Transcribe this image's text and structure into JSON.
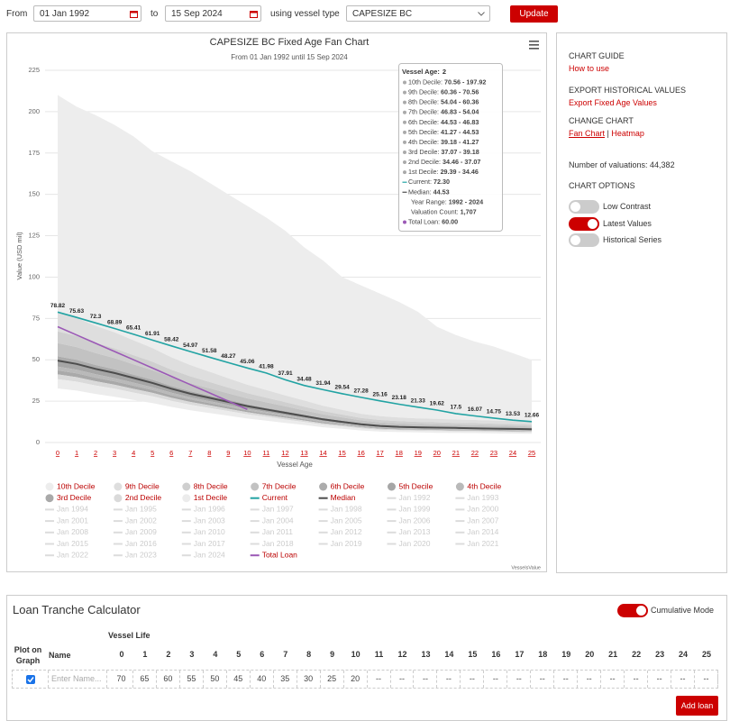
{
  "controls": {
    "from_label": "From",
    "from_date": "01 Jan 1992",
    "to_label": "to",
    "to_date": "15 Sep 2024",
    "vessel_label": "using vessel type",
    "vessel_type": "CAPESIZE BC",
    "update": "Update"
  },
  "chart_data": {
    "type": "fan",
    "title": "CAPESIZE BC Fixed Age Fan Chart",
    "subtitle": "From 01 Jan 1992 until 15 Sep 2024",
    "x_label": "Vessel Age",
    "y_label": "Value (USD mil)",
    "categories": [
      "0",
      "1",
      "2",
      "3",
      "4",
      "5",
      "6",
      "7",
      "8",
      "9",
      "10",
      "11",
      "12",
      "13",
      "14",
      "15",
      "16",
      "17",
      "18",
      "19",
      "20",
      "21",
      "22",
      "23",
      "24",
      "25"
    ],
    "ylim": [
      0,
      225
    ],
    "yticks": [
      0,
      25,
      50,
      75,
      100,
      125,
      150,
      175,
      200,
      225
    ],
    "grid": true,
    "series": [
      {
        "name": "10th Decile",
        "style": "band",
        "color": "#ededed",
        "values": [
          210,
          203,
          197.92,
          192,
          185,
          176,
          170,
          164,
          157,
          150,
          143,
          136,
          128,
          118,
          110,
          100,
          95,
          90,
          85,
          79,
          70,
          65,
          61,
          58,
          54,
          50
        ]
      },
      {
        "name": "9th Decile",
        "style": "band",
        "color": "#dedede",
        "values": [
          78.5,
          75.3,
          70.56,
          66.6,
          61.8,
          57.1,
          51.5,
          46.8,
          42.8,
          38.8,
          34.9,
          31.7,
          28.5,
          25.4,
          22.2,
          19.8,
          17.4,
          15.9,
          15.1,
          14.6,
          14.3,
          13.9,
          13.6,
          13.3,
          13.0,
          12.7
        ]
      },
      {
        "name": "8th Decile",
        "style": "band",
        "color": "#cfcfcf",
        "values": [
          67.1,
          64.4,
          60.36,
          56.9,
          52.8,
          48.8,
          44.0,
          40.0,
          36.6,
          33.2,
          29.8,
          27.1,
          24.4,
          21.7,
          19.0,
          16.9,
          14.9,
          13.6,
          12.9,
          12.5,
          12.2,
          11.9,
          11.7,
          11.4,
          11.1,
          10.8
        ]
      },
      {
        "name": "7th Decile",
        "style": "band",
        "color": "#c2c2c2",
        "values": [
          60.1,
          57.7,
          54.04,
          51.0,
          47.3,
          43.7,
          39.5,
          35.8,
          32.8,
          29.7,
          26.7,
          24.3,
          21.9,
          19.4,
          17.0,
          15.2,
          13.4,
          12.1,
          11.5,
          11.2,
          10.9,
          10.7,
          10.4,
          10.2,
          10.0,
          9.7
        ]
      },
      {
        "name": "6th Decile",
        "style": "band",
        "color": "#acacac",
        "values": [
          52.1,
          50.0,
          46.83,
          44.2,
          41.0,
          37.9,
          34.2,
          31.0,
          28.4,
          25.8,
          23.1,
          21.0,
          18.9,
          16.8,
          14.7,
          13.2,
          11.6,
          10.5,
          10.0,
          9.7,
          9.5,
          9.3,
          9.0,
          8.8,
          8.6,
          8.4
        ]
      },
      {
        "name": "5th Decile",
        "style": "band",
        "color": "#a6a6a6",
        "values": [
          49.5,
          47.5,
          44.53,
          42.0,
          39.0,
          36.0,
          32.5,
          29.5,
          27.0,
          24.5,
          22.0,
          20.0,
          18.0,
          16.0,
          14.0,
          12.5,
          11.0,
          10.0,
          9.5,
          9.2,
          9.0,
          8.8,
          8.6,
          8.4,
          8.2,
          8.0
        ]
      },
      {
        "name": "4th Decile",
        "style": "band",
        "color": "#b9b9b9",
        "values": [
          45.9,
          44.0,
          41.27,
          38.9,
          36.2,
          33.4,
          30.1,
          27.3,
          25.0,
          22.7,
          20.4,
          18.5,
          16.7,
          14.8,
          13.0,
          11.6,
          10.2,
          9.3,
          8.8,
          8.5,
          8.3,
          8.2,
          8.0,
          7.8,
          7.6,
          7.4
        ]
      },
      {
        "name": "3rd Decile",
        "style": "band",
        "color": "#a9a9a9",
        "values": [
          43.6,
          41.8,
          39.18,
          37.0,
          34.3,
          31.7,
          28.6,
          26.0,
          23.8,
          21.6,
          19.4,
          17.6,
          15.8,
          14.1,
          12.3,
          11.0,
          9.7,
          8.8,
          8.4,
          8.1,
          7.9,
          7.7,
          7.6,
          7.4,
          7.2,
          7.0
        ]
      },
      {
        "name": "2nd Decile",
        "style": "band",
        "color": "#dadada",
        "values": [
          41.2,
          39.5,
          37.07,
          34.9,
          32.4,
          30.0,
          27.0,
          24.5,
          22.5,
          20.4,
          18.3,
          16.6,
          15.0,
          13.3,
          11.6,
          10.4,
          9.2,
          8.3,
          7.9,
          7.7,
          7.5,
          7.3,
          7.2,
          7.0,
          6.8,
          6.7
        ]
      },
      {
        "name": "1st Decile",
        "style": "band",
        "color": "#ececec",
        "values": [
          38.3,
          36.8,
          34.46,
          32.5,
          30.2,
          27.9,
          25.2,
          22.8,
          20.9,
          19.0,
          17.0,
          15.5,
          13.9,
          12.4,
          10.8,
          9.7,
          8.5,
          7.7,
          7.4,
          7.1,
          7.0,
          6.8,
          6.7,
          6.5,
          6.3,
          6.2
        ],
        "low": [
          32.7,
          31.4,
          29.39,
          27.7,
          25.7,
          23.8,
          21.5,
          19.5,
          17.8,
          16.2,
          14.5,
          13.2,
          11.9,
          10.6,
          9.2,
          8.3,
          7.3,
          6.6,
          6.3,
          6.1,
          5.9,
          5.8,
          5.7,
          5.5,
          5.4,
          5.3
        ]
      },
      {
        "name": "Current",
        "style": "line",
        "color": "#22a3a3",
        "width": 1.6,
        "labels": true,
        "values": [
          78.82,
          75.63,
          72.3,
          68.89,
          65.41,
          61.91,
          58.42,
          54.97,
          51.58,
          48.27,
          45.06,
          41.98,
          37.91,
          34.48,
          31.94,
          29.54,
          27.28,
          25.16,
          23.18,
          21.33,
          19.62,
          17.5,
          16.07,
          14.75,
          13.53,
          12.66
        ]
      },
      {
        "name": "Median",
        "style": "line",
        "color": "#4d4d4d",
        "width": 2,
        "values": [
          49.5,
          47.5,
          44.53,
          42,
          39,
          36,
          32.5,
          29.5,
          27,
          24.5,
          22,
          20,
          18,
          16,
          14,
          12.5,
          11,
          10,
          9.5,
          9.2,
          9,
          8.8,
          8.6,
          8.4,
          8.2,
          8
        ]
      },
      {
        "name": "Total Loan",
        "style": "line",
        "color": "#9b59b6",
        "width": 1.6,
        "values": [
          70,
          65,
          60,
          55,
          50,
          45,
          40,
          35,
          30,
          25,
          20,
          null,
          null,
          null,
          null,
          null,
          null,
          null,
          null,
          null,
          null,
          null,
          null,
          null,
          null,
          null
        ]
      }
    ],
    "legend_inactive": [
      "Jan 1992",
      "Jan 1993",
      "Jan 1994",
      "Jan 1995",
      "Jan 1996",
      "Jan 1997",
      "Jan 1998",
      "Jan 1999",
      "Jan 2000",
      "Jan 2001",
      "Jan 2002",
      "Jan 2003",
      "Jan 2004",
      "Jan 2005",
      "Jan 2006",
      "Jan 2007",
      "Jan 2008",
      "Jan 2009",
      "Jan 2010",
      "Jan 2011",
      "Jan 2012",
      "Jan 2013",
      "Jan 2014",
      "Jan 2015",
      "Jan 2016",
      "Jan 2017",
      "Jan 2018",
      "Jan 2019",
      "Jan 2020",
      "Jan 2021",
      "Jan 2022",
      "Jan 2023",
      "Jan 2024"
    ],
    "tooltip": {
      "title": {
        "label": "Vessel Age:",
        "value": 2
      },
      "rows": [
        {
          "label": "10th Decile:",
          "value": "70.56 - 197.92"
        },
        {
          "label": "9th Decile:",
          "value": "60.36 - 70.56"
        },
        {
          "label": "8th Decile:",
          "value": "54.04 - 60.36"
        },
        {
          "label": "7th Decile:",
          "value": "46.83 - 54.04"
        },
        {
          "label": "6th Decile:",
          "value": "44.53 - 46.83"
        },
        {
          "label": "5th Decile:",
          "value": "41.27 - 44.53"
        },
        {
          "label": "4th Decile:",
          "value": "39.18 - 41.27"
        },
        {
          "label": "3rd Decile:",
          "value": "37.07 - 39.18"
        },
        {
          "label": "2nd Decile:",
          "value": "34.46 - 37.07"
        },
        {
          "label": "1st Decile:",
          "value": "29.39 - 34.46"
        },
        {
          "label": "Current:",
          "value": "72.30"
        },
        {
          "label": "Median:",
          "value": "44.53"
        },
        {
          "label": "Year Range:",
          "value": "1992 - 2024"
        },
        {
          "label": "Valuation Count:",
          "value": "1,707"
        },
        {
          "label": "Total Loan:",
          "value": "60.00"
        }
      ]
    },
    "credit": "VesselsValue"
  },
  "sidebar": {
    "guide_heading": "CHART GUIDE",
    "guide_link": "How to use",
    "export_heading": "EXPORT HISTORICAL VALUES",
    "export_link": "Export Fixed Age Values",
    "change_heading": "CHANGE CHART",
    "chart_links": [
      "Fan Chart",
      "Heatmap"
    ],
    "separator": "|",
    "valuations": "Number of valuations: 44,382",
    "options_heading": "CHART OPTIONS",
    "options": [
      {
        "label": "Low Contrast",
        "on": false
      },
      {
        "label": "Latest Values",
        "on": true
      },
      {
        "label": "Historical Series",
        "on": false
      }
    ]
  },
  "calculator": {
    "title": "Loan Tranche Calculator",
    "mode_label": "Cumulative Mode",
    "mode_on": true,
    "plot_header": "Plot on Graph",
    "name_header": "Name",
    "life_header": "Vessel Life",
    "ages": [
      0,
      1,
      2,
      3,
      4,
      5,
      6,
      7,
      8,
      9,
      10,
      11,
      12,
      13,
      14,
      15,
      16,
      17,
      18,
      19,
      20,
      21,
      22,
      23,
      24,
      25
    ],
    "rows": [
      {
        "plot": true,
        "name_placeholder": "Enter Name...",
        "cells": [
          70,
          65,
          60,
          55,
          50,
          45,
          40,
          35,
          30,
          25,
          20,
          "--",
          "--",
          "--",
          "--",
          "--",
          "--",
          "--",
          "--",
          "--",
          "--",
          "--",
          "--",
          "--",
          "--",
          "--"
        ]
      }
    ],
    "add_button": "Add loan"
  }
}
